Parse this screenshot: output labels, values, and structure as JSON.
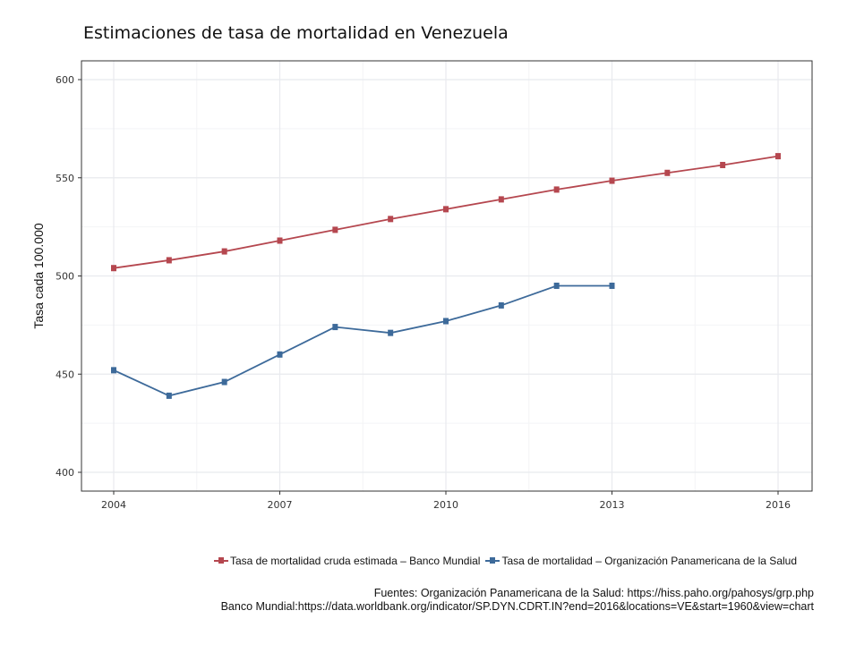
{
  "chart_data": {
    "type": "line",
    "title": "Estimaciones de tasa de mortalidad en Venezuela",
    "xlabel": "",
    "ylabel": "Tasa cada 100.000",
    "xlim": [
      2003.6,
      2016.6
    ],
    "ylim": [
      395,
      605
    ],
    "xticks": [
      2004,
      2007,
      2010,
      2013,
      2016
    ],
    "yticks": [
      400,
      450,
      500,
      550,
      600
    ],
    "grid": true,
    "legend_position": "bottom-right",
    "series": [
      {
        "name": "Tasa de mortalidad cruda estimada – Banco Mundial",
        "color": "#b5474f",
        "x": [
          2004,
          2005,
          2006,
          2007,
          2008,
          2009,
          2010,
          2011,
          2012,
          2013,
          2014,
          2015,
          2016
        ],
        "values": [
          504,
          508,
          512.5,
          518,
          523.5,
          529,
          534,
          539,
          544,
          548.5,
          552.5,
          556.5,
          561
        ]
      },
      {
        "name": "Tasa de mortalidad – Organización Panamericana de la Salud",
        "color": "#3d6a9a",
        "x": [
          2004,
          2005,
          2006,
          2007,
          2008,
          2009,
          2010,
          2011,
          2012,
          2013
        ],
        "values": [
          452,
          439,
          446,
          460,
          474,
          471,
          477,
          485,
          495,
          495
        ]
      }
    ]
  },
  "sources": {
    "line1": "Fuentes: Organización Panamericana de la Salud: https://hiss.paho.org/pahosys/grp.php",
    "line2": "Banco Mundial:https://data.worldbank.org/indicator/SP.DYN.CDRT.IN?end=2016&locations=VE&start=1960&view=chart"
  }
}
